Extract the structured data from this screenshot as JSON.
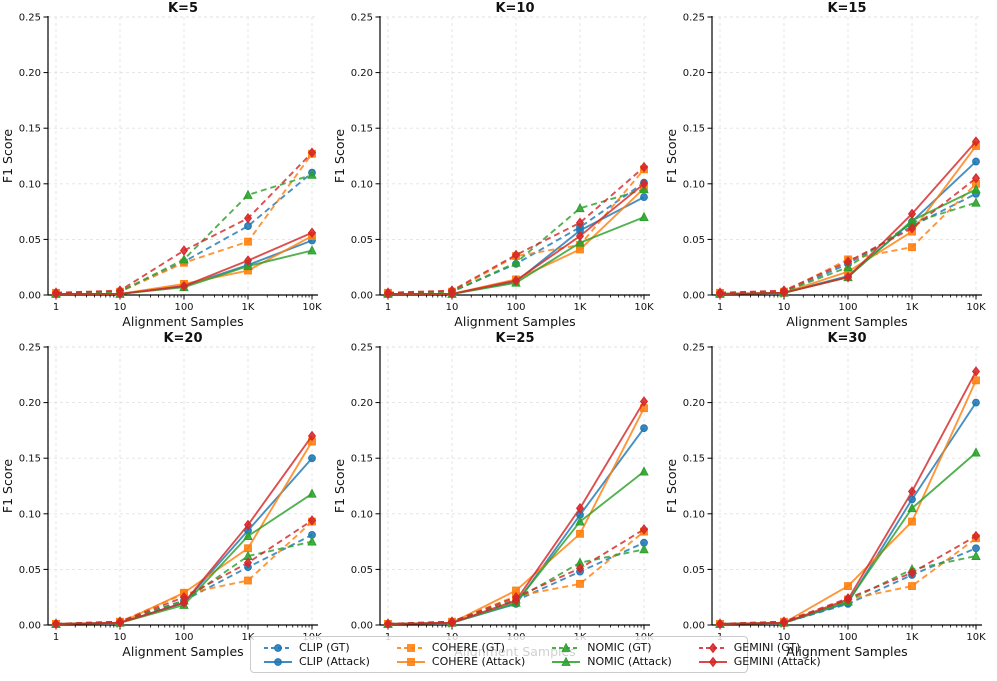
{
  "figure": {
    "ylabel": "F1 Score",
    "xlabel": "Alignment Samples",
    "background_color": "#ffffff",
    "grid_color": "#e2e2e2",
    "spine_color": "#000000",
    "x_ticklabels": [
      "1",
      "10",
      "100",
      "1K",
      "10K"
    ],
    "y_ticklabels": [
      "0.00",
      "0.05",
      "0.10",
      "0.15",
      "0.20",
      "0.25"
    ]
  },
  "legend": {
    "entries": [
      {
        "label": "CLIP (GT)",
        "color": "#1f77b4",
        "marker": "circle",
        "dashed": true
      },
      {
        "label": "COHERE (GT)",
        "color": "#ff7f0e",
        "marker": "square",
        "dashed": true
      },
      {
        "label": "NOMIC (GT)",
        "color": "#2ca02c",
        "marker": "triangle",
        "dashed": true
      },
      {
        "label": "GEMINI (GT)",
        "color": "#d62728",
        "marker": "diamond",
        "dashed": true
      },
      {
        "label": "CLIP (Attack)",
        "color": "#1f77b4",
        "marker": "circle",
        "dashed": false
      },
      {
        "label": "COHERE (Attack)",
        "color": "#ff7f0e",
        "marker": "square",
        "dashed": false
      },
      {
        "label": "NOMIC (Attack)",
        "color": "#2ca02c",
        "marker": "triangle",
        "dashed": false
      },
      {
        "label": "GEMINI (Attack)",
        "color": "#d62728",
        "marker": "diamond",
        "dashed": false
      }
    ]
  },
  "chart_data": [
    {
      "type": "line",
      "title": "K=5",
      "xlabel": "Alignment Samples",
      "ylabel": "F1 Score",
      "x_scale": "log",
      "categories": [
        "1",
        "10",
        "100",
        "1K",
        "10K"
      ],
      "ylim": [
        0,
        0.25
      ],
      "yticks": [
        0,
        0.05,
        0.1,
        0.15,
        0.2,
        0.25
      ],
      "grid": true,
      "series": [
        {
          "name": "CLIP (GT)",
          "color": "#1f77b4",
          "marker": "circle",
          "dashed": true,
          "values": [
            0.002,
            0.003,
            0.03,
            0.062,
            0.11
          ]
        },
        {
          "name": "CLIP (Attack)",
          "color": "#1f77b4",
          "marker": "circle",
          "dashed": false,
          "values": [
            0.001,
            0.001,
            0.008,
            0.027,
            0.049
          ]
        },
        {
          "name": "COHERE (GT)",
          "color": "#ff7f0e",
          "marker": "square",
          "dashed": true,
          "values": [
            0.002,
            0.003,
            0.029,
            0.048,
            0.127
          ]
        },
        {
          "name": "COHERE (Attack)",
          "color": "#ff7f0e",
          "marker": "square",
          "dashed": false,
          "values": [
            0.001,
            0.001,
            0.01,
            0.022,
            0.053
          ]
        },
        {
          "name": "NOMIC (GT)",
          "color": "#2ca02c",
          "marker": "triangle",
          "dashed": true,
          "values": [
            0.002,
            0.003,
            0.032,
            0.09,
            0.108
          ]
        },
        {
          "name": "NOMIC (Attack)",
          "color": "#2ca02c",
          "marker": "triangle",
          "dashed": false,
          "values": [
            0.001,
            0.001,
            0.007,
            0.026,
            0.04
          ]
        },
        {
          "name": "GEMINI (GT)",
          "color": "#d62728",
          "marker": "diamond",
          "dashed": true,
          "values": [
            0.002,
            0.004,
            0.04,
            0.069,
            0.128
          ]
        },
        {
          "name": "GEMINI (Attack)",
          "color": "#d62728",
          "marker": "diamond",
          "dashed": false,
          "values": [
            0.001,
            0.001,
            0.008,
            0.031,
            0.056
          ]
        }
      ]
    },
    {
      "type": "line",
      "title": "K=10",
      "xlabel": "Alignment Samples",
      "ylabel": "F1 Score",
      "x_scale": "log",
      "categories": [
        "1",
        "10",
        "100",
        "1K",
        "10K"
      ],
      "ylim": [
        0,
        0.25
      ],
      "yticks": [
        0,
        0.05,
        0.1,
        0.15,
        0.2,
        0.25
      ],
      "grid": true,
      "series": [
        {
          "name": "CLIP (GT)",
          "color": "#1f77b4",
          "marker": "circle",
          "dashed": true,
          "values": [
            0.002,
            0.003,
            0.028,
            0.061,
            0.101
          ]
        },
        {
          "name": "CLIP (Attack)",
          "color": "#1f77b4",
          "marker": "circle",
          "dashed": false,
          "values": [
            0.001,
            0.001,
            0.012,
            0.058,
            0.088
          ]
        },
        {
          "name": "COHERE (GT)",
          "color": "#ff7f0e",
          "marker": "square",
          "dashed": true,
          "values": [
            0.002,
            0.003,
            0.035,
            0.045,
            0.113
          ]
        },
        {
          "name": "COHERE (Attack)",
          "color": "#ff7f0e",
          "marker": "square",
          "dashed": false,
          "values": [
            0.001,
            0.001,
            0.014,
            0.041,
            0.096
          ]
        },
        {
          "name": "NOMIC (GT)",
          "color": "#2ca02c",
          "marker": "triangle",
          "dashed": true,
          "values": [
            0.002,
            0.003,
            0.029,
            0.078,
            0.095
          ]
        },
        {
          "name": "NOMIC (Attack)",
          "color": "#2ca02c",
          "marker": "triangle",
          "dashed": false,
          "values": [
            0.001,
            0.001,
            0.011,
            0.047,
            0.07
          ]
        },
        {
          "name": "GEMINI (GT)",
          "color": "#d62728",
          "marker": "diamond",
          "dashed": true,
          "values": [
            0.002,
            0.004,
            0.036,
            0.065,
            0.115
          ]
        },
        {
          "name": "GEMINI (Attack)",
          "color": "#d62728",
          "marker": "diamond",
          "dashed": false,
          "values": [
            0.001,
            0.001,
            0.013,
            0.053,
            0.1
          ]
        }
      ]
    },
    {
      "type": "line",
      "title": "K=15",
      "xlabel": "Alignment Samples",
      "ylabel": "F1 Score",
      "x_scale": "log",
      "categories": [
        "1",
        "10",
        "100",
        "1K",
        "10K"
      ],
      "ylim": [
        0,
        0.25
      ],
      "yticks": [
        0,
        0.05,
        0.1,
        0.15,
        0.2,
        0.25
      ],
      "grid": true,
      "series": [
        {
          "name": "CLIP (GT)",
          "color": "#1f77b4",
          "marker": "circle",
          "dashed": true,
          "values": [
            0.002,
            0.003,
            0.028,
            0.062,
            0.091
          ]
        },
        {
          "name": "CLIP (Attack)",
          "color": "#1f77b4",
          "marker": "circle",
          "dashed": false,
          "values": [
            0.001,
            0.002,
            0.017,
            0.066,
            0.12
          ]
        },
        {
          "name": "COHERE (GT)",
          "color": "#ff7f0e",
          "marker": "square",
          "dashed": true,
          "values": [
            0.002,
            0.003,
            0.032,
            0.043,
            0.1
          ]
        },
        {
          "name": "COHERE (Attack)",
          "color": "#ff7f0e",
          "marker": "square",
          "dashed": false,
          "values": [
            0.001,
            0.002,
            0.021,
            0.057,
            0.134
          ]
        },
        {
          "name": "NOMIC (GT)",
          "color": "#2ca02c",
          "marker": "triangle",
          "dashed": true,
          "values": [
            0.002,
            0.003,
            0.025,
            0.065,
            0.083
          ]
        },
        {
          "name": "NOMIC (Attack)",
          "color": "#2ca02c",
          "marker": "triangle",
          "dashed": false,
          "values": [
            0.001,
            0.002,
            0.016,
            0.067,
            0.095
          ]
        },
        {
          "name": "GEMINI (GT)",
          "color": "#d62728",
          "marker": "diamond",
          "dashed": true,
          "values": [
            0.002,
            0.004,
            0.03,
            0.06,
            0.105
          ]
        },
        {
          "name": "GEMINI (Attack)",
          "color": "#d62728",
          "marker": "diamond",
          "dashed": false,
          "values": [
            0.001,
            0.002,
            0.016,
            0.073,
            0.138
          ]
        }
      ]
    },
    {
      "type": "line",
      "title": "K=20",
      "xlabel": "Alignment Samples",
      "ylabel": "F1 Score",
      "x_scale": "log",
      "categories": [
        "1",
        "10",
        "100",
        "1K",
        "10K"
      ],
      "ylim": [
        0,
        0.25
      ],
      "yticks": [
        0,
        0.05,
        0.1,
        0.15,
        0.2,
        0.25
      ],
      "grid": true,
      "series": [
        {
          "name": "CLIP (GT)",
          "color": "#1f77b4",
          "marker": "circle",
          "dashed": true,
          "values": [
            0.001,
            0.003,
            0.022,
            0.052,
            0.081
          ]
        },
        {
          "name": "CLIP (Attack)",
          "color": "#1f77b4",
          "marker": "circle",
          "dashed": false,
          "values": [
            0.001,
            0.002,
            0.02,
            0.085,
            0.15
          ]
        },
        {
          "name": "COHERE (GT)",
          "color": "#ff7f0e",
          "marker": "square",
          "dashed": true,
          "values": [
            0.001,
            0.003,
            0.028,
            0.04,
            0.093
          ]
        },
        {
          "name": "COHERE (Attack)",
          "color": "#ff7f0e",
          "marker": "square",
          "dashed": false,
          "values": [
            0.001,
            0.002,
            0.029,
            0.069,
            0.165
          ]
        },
        {
          "name": "NOMIC (GT)",
          "color": "#2ca02c",
          "marker": "triangle",
          "dashed": true,
          "values": [
            0.001,
            0.003,
            0.022,
            0.062,
            0.075
          ]
        },
        {
          "name": "NOMIC (Attack)",
          "color": "#2ca02c",
          "marker": "triangle",
          "dashed": false,
          "values": [
            0.001,
            0.002,
            0.018,
            0.08,
            0.118
          ]
        },
        {
          "name": "GEMINI (GT)",
          "color": "#d62728",
          "marker": "diamond",
          "dashed": true,
          "values": [
            0.001,
            0.003,
            0.025,
            0.056,
            0.094
          ]
        },
        {
          "name": "GEMINI (Attack)",
          "color": "#d62728",
          "marker": "diamond",
          "dashed": false,
          "values": [
            0.001,
            0.002,
            0.02,
            0.09,
            0.17
          ]
        }
      ]
    },
    {
      "type": "line",
      "title": "K=25",
      "xlabel": "Alignment Samples",
      "ylabel": "F1 Score",
      "x_scale": "log",
      "categories": [
        "1",
        "10",
        "100",
        "1K",
        "10K"
      ],
      "ylim": [
        0,
        0.25
      ],
      "yticks": [
        0,
        0.05,
        0.1,
        0.15,
        0.2,
        0.25
      ],
      "grid": true,
      "series": [
        {
          "name": "CLIP (GT)",
          "color": "#1f77b4",
          "marker": "circle",
          "dashed": true,
          "values": [
            0.001,
            0.003,
            0.022,
            0.048,
            0.074
          ]
        },
        {
          "name": "CLIP (Attack)",
          "color": "#1f77b4",
          "marker": "circle",
          "dashed": false,
          "values": [
            0.001,
            0.002,
            0.019,
            0.099,
            0.177
          ]
        },
        {
          "name": "COHERE (GT)",
          "color": "#ff7f0e",
          "marker": "square",
          "dashed": true,
          "values": [
            0.001,
            0.003,
            0.026,
            0.037,
            0.084
          ]
        },
        {
          "name": "COHERE (Attack)",
          "color": "#ff7f0e",
          "marker": "square",
          "dashed": false,
          "values": [
            0.001,
            0.002,
            0.031,
            0.082,
            0.195
          ]
        },
        {
          "name": "NOMIC (GT)",
          "color": "#2ca02c",
          "marker": "triangle",
          "dashed": true,
          "values": [
            0.001,
            0.003,
            0.023,
            0.056,
            0.068
          ]
        },
        {
          "name": "NOMIC (Attack)",
          "color": "#2ca02c",
          "marker": "triangle",
          "dashed": false,
          "values": [
            0.001,
            0.002,
            0.02,
            0.093,
            0.138
          ]
        },
        {
          "name": "GEMINI (GT)",
          "color": "#d62728",
          "marker": "diamond",
          "dashed": true,
          "values": [
            0.001,
            0.003,
            0.025,
            0.051,
            0.086
          ]
        },
        {
          "name": "GEMINI (Attack)",
          "color": "#d62728",
          "marker": "diamond",
          "dashed": false,
          "values": [
            0.001,
            0.002,
            0.022,
            0.105,
            0.201
          ]
        }
      ]
    },
    {
      "type": "line",
      "title": "K=30",
      "xlabel": "Alignment Samples",
      "ylabel": "F1 Score",
      "x_scale": "log",
      "categories": [
        "1",
        "10",
        "100",
        "1K",
        "10K"
      ],
      "ylim": [
        0,
        0.25
      ],
      "yticks": [
        0,
        0.05,
        0.1,
        0.15,
        0.2,
        0.25
      ],
      "grid": true,
      "series": [
        {
          "name": "CLIP (GT)",
          "color": "#1f77b4",
          "marker": "circle",
          "dashed": true,
          "values": [
            0.001,
            0.002,
            0.019,
            0.045,
            0.069
          ]
        },
        {
          "name": "CLIP (Attack)",
          "color": "#1f77b4",
          "marker": "circle",
          "dashed": false,
          "values": [
            0.001,
            0.002,
            0.02,
            0.113,
            0.2
          ]
        },
        {
          "name": "COHERE (GT)",
          "color": "#ff7f0e",
          "marker": "square",
          "dashed": true,
          "values": [
            0.001,
            0.003,
            0.023,
            0.035,
            0.078
          ]
        },
        {
          "name": "COHERE (Attack)",
          "color": "#ff7f0e",
          "marker": "square",
          "dashed": false,
          "values": [
            0.001,
            0.002,
            0.035,
            0.093,
            0.22
          ]
        },
        {
          "name": "NOMIC (GT)",
          "color": "#2ca02c",
          "marker": "triangle",
          "dashed": true,
          "values": [
            0.001,
            0.003,
            0.022,
            0.05,
            0.062
          ]
        },
        {
          "name": "NOMIC (Attack)",
          "color": "#2ca02c",
          "marker": "triangle",
          "dashed": false,
          "values": [
            0.001,
            0.002,
            0.021,
            0.105,
            0.155
          ]
        },
        {
          "name": "GEMINI (GT)",
          "color": "#d62728",
          "marker": "diamond",
          "dashed": true,
          "values": [
            0.001,
            0.003,
            0.024,
            0.047,
            0.08
          ]
        },
        {
          "name": "GEMINI (Attack)",
          "color": "#d62728",
          "marker": "diamond",
          "dashed": false,
          "values": [
            0.001,
            0.002,
            0.023,
            0.12,
            0.228
          ]
        }
      ]
    }
  ]
}
